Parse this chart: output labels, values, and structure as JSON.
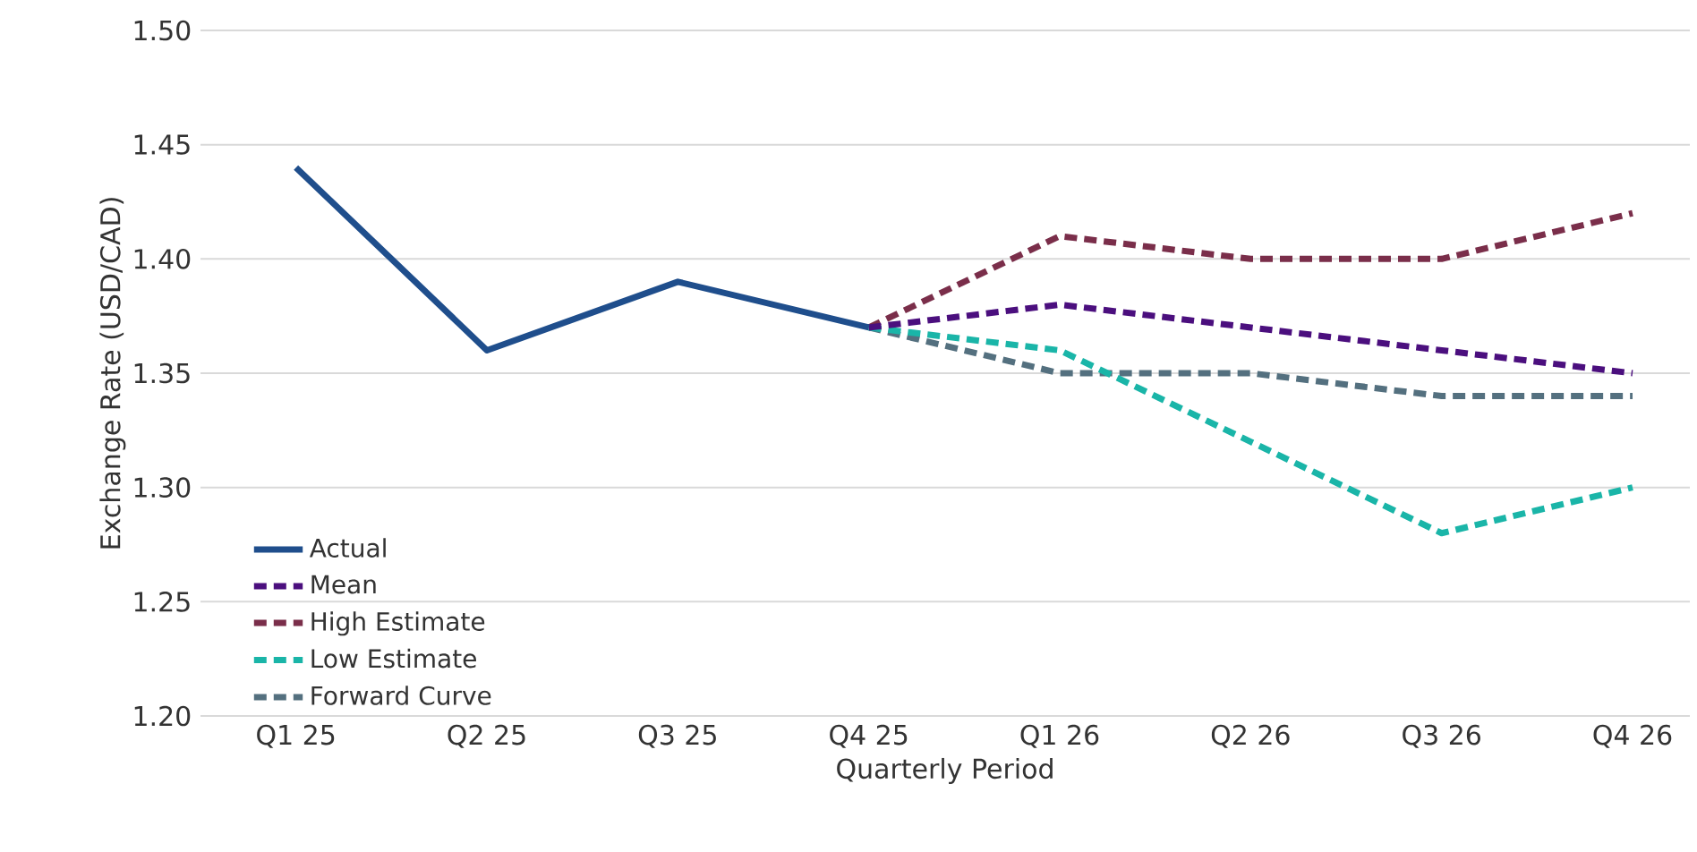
{
  "chart_data": {
    "type": "line",
    "xlabel": "Quarterly Period",
    "ylabel": "Exchange Rate (USD/CAD)",
    "categories": [
      "Q1 25",
      "Q2 25",
      "Q3 25",
      "Q4 25",
      "Q1 26",
      "Q2 26",
      "Q3 26",
      "Q4 26"
    ],
    "ylim": [
      1.2,
      1.5
    ],
    "yticks": [
      {
        "value": 1.2,
        "label": "1.20"
      },
      {
        "value": 1.25,
        "label": "1.25"
      },
      {
        "value": 1.3,
        "label": "1.30"
      },
      {
        "value": 1.35,
        "label": "1.35"
      },
      {
        "value": 1.4,
        "label": "1.40"
      },
      {
        "value": 1.45,
        "label": "1.45"
      },
      {
        "value": 1.5,
        "label": "1.50"
      }
    ],
    "grid": "y",
    "legend": "bottom left",
    "marker": "none",
    "series": [
      {
        "name": "Actual",
        "color": "#1f4e8c",
        "line_style": "solid",
        "values": [
          1.44,
          1.36,
          1.39,
          1.37,
          null,
          null,
          null,
          null
        ]
      },
      {
        "name": "Mean",
        "color": "#4b0f7e",
        "line_style": "dashed",
        "values": [
          null,
          null,
          null,
          1.37,
          1.38,
          1.37,
          1.36,
          1.35
        ]
      },
      {
        "name": "High Estimate",
        "color": "#7a2e4a",
        "line_style": "dashed",
        "values": [
          null,
          null,
          null,
          1.37,
          1.41,
          1.4,
          1.4,
          1.42
        ]
      },
      {
        "name": "Low Estimate",
        "color": "#1ab5a8",
        "line_style": "dashed",
        "values": [
          null,
          null,
          null,
          1.37,
          1.36,
          1.32,
          1.28,
          1.3
        ]
      },
      {
        "name": "Forward Curve",
        "color": "#54707f",
        "line_style": "dashed",
        "values": [
          null,
          null,
          null,
          1.37,
          1.35,
          1.35,
          1.34,
          1.34
        ]
      }
    ]
  }
}
